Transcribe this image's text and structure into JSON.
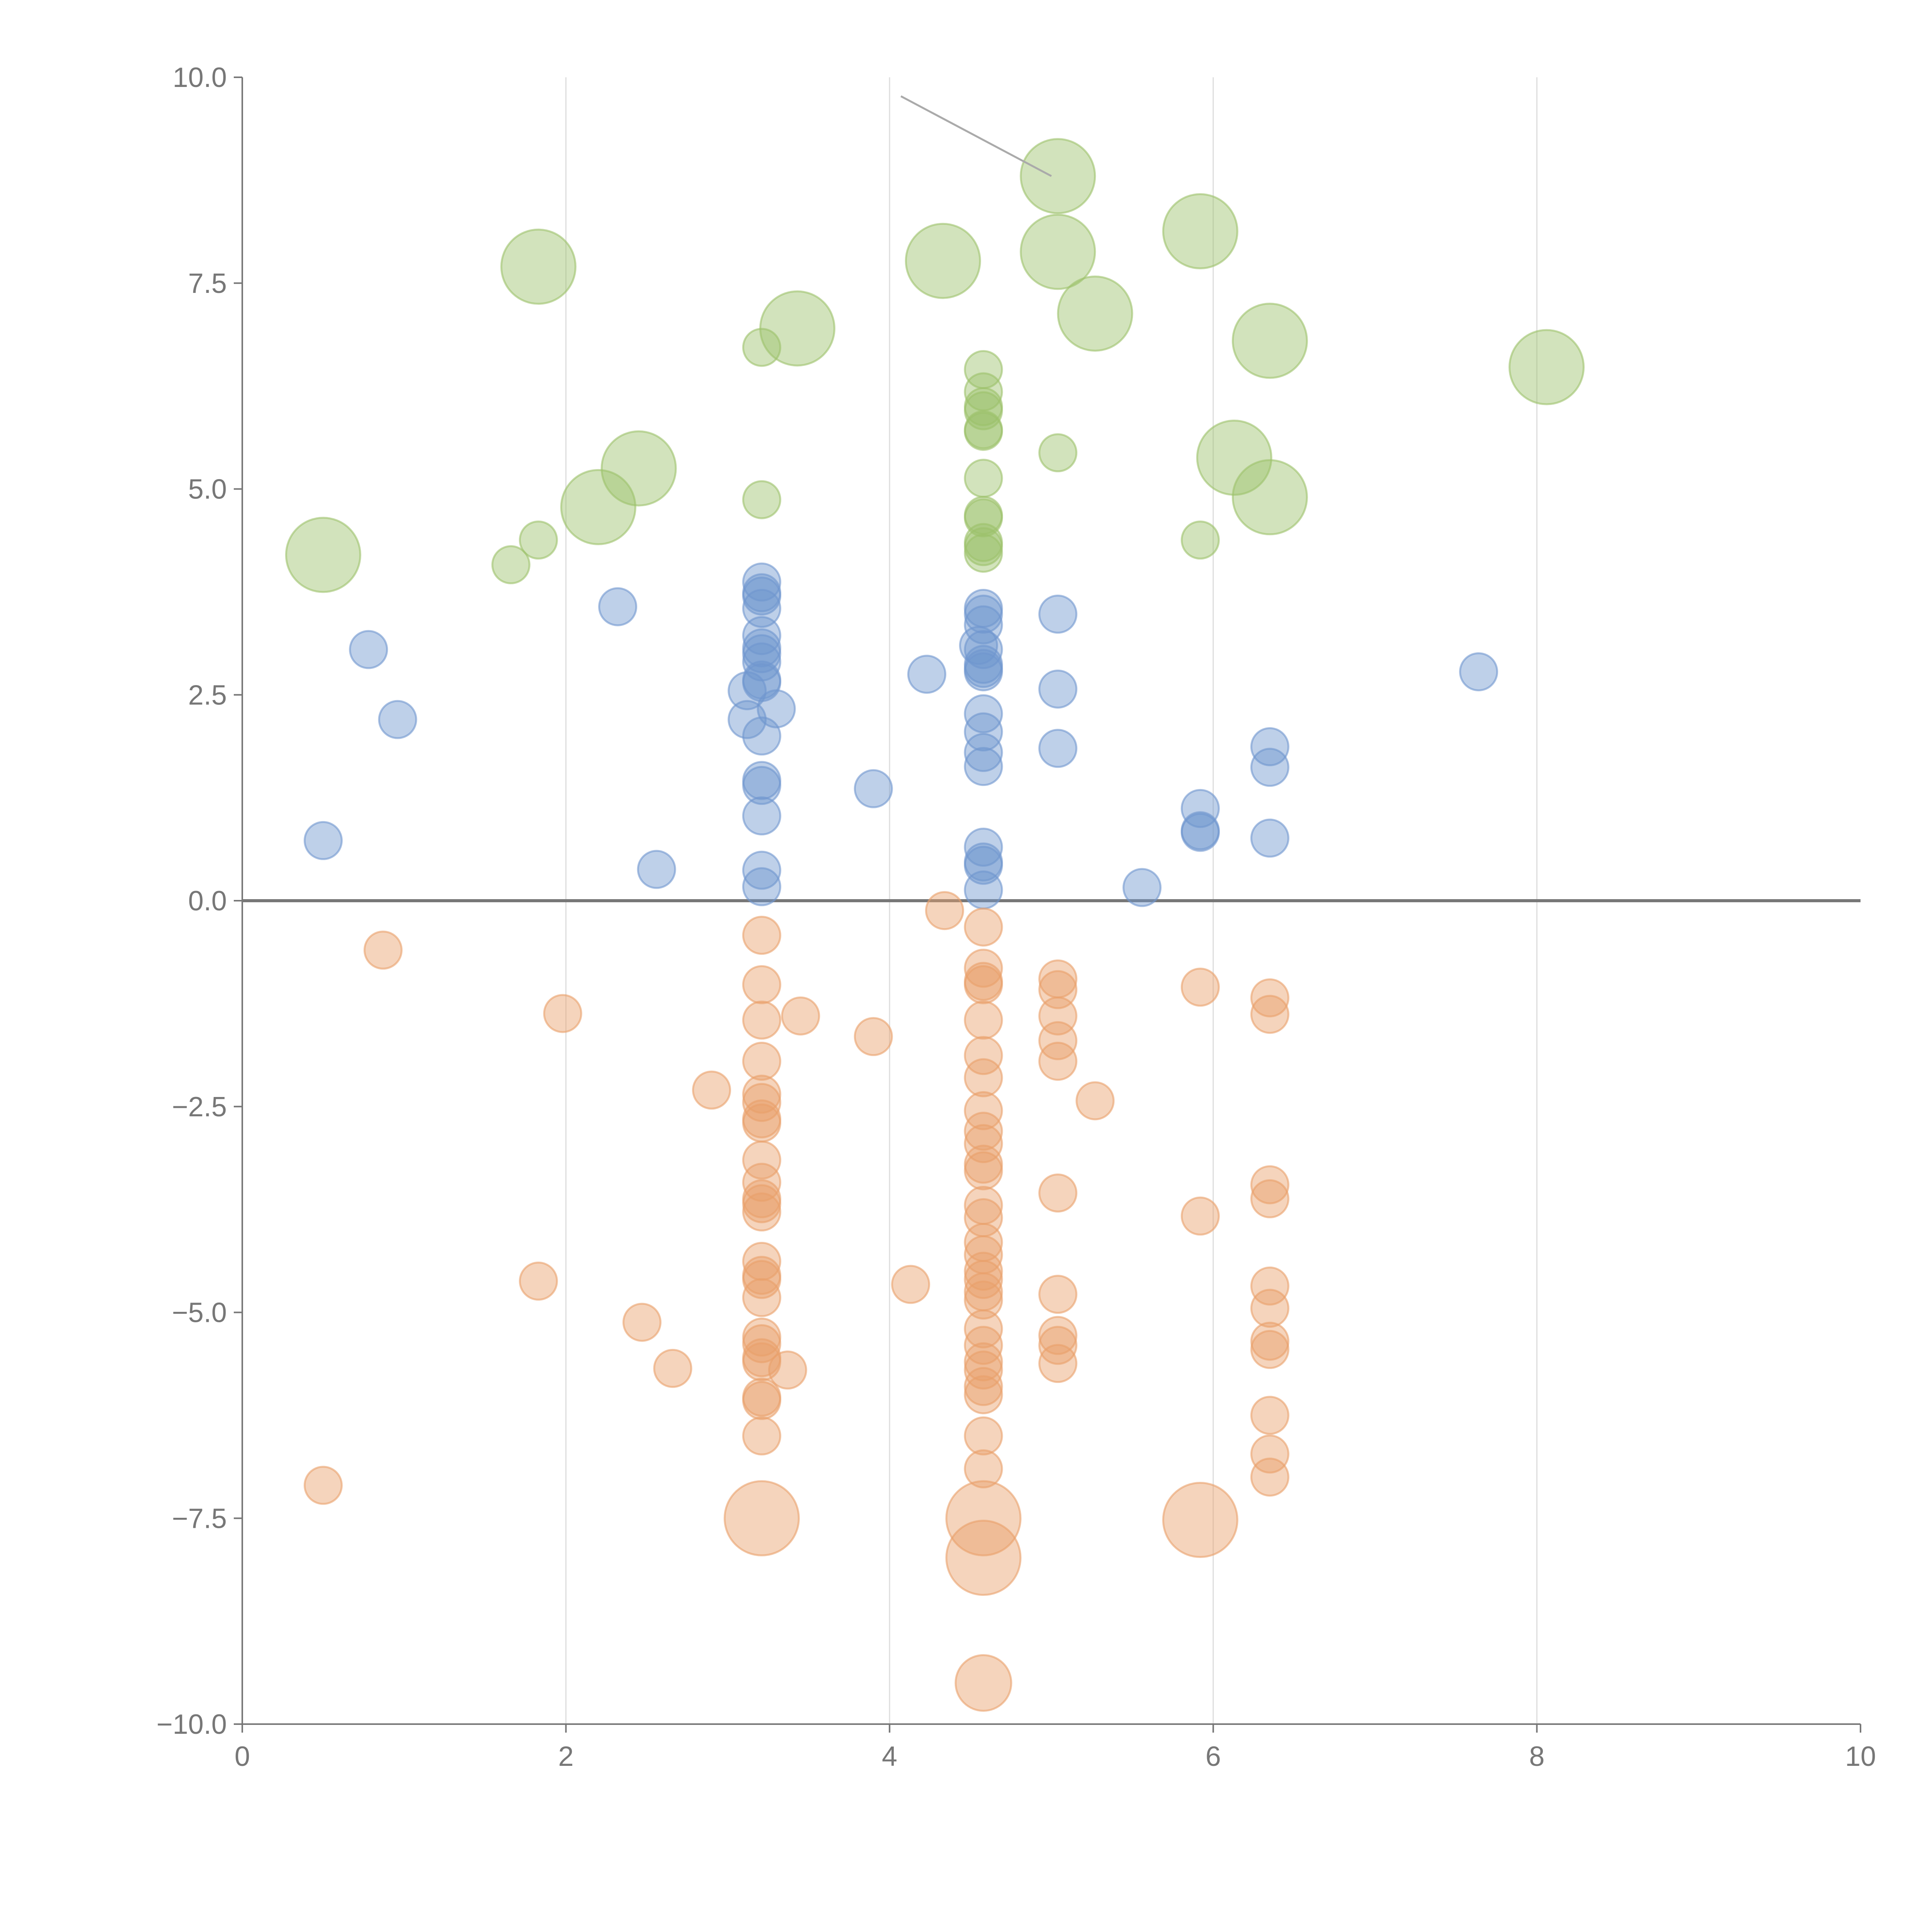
{
  "chart_data": {
    "type": "scatter",
    "title": "",
    "xlabel": "",
    "ylabel": "",
    "xlim": [
      0,
      10
    ],
    "ylim": [
      -10,
      10
    ],
    "x_ticks": [
      "0",
      "2",
      "4",
      "6",
      "8",
      "10"
    ],
    "y_ticks": [
      "10.0",
      "7.5",
      "5.0",
      "2.5",
      "0.0",
      "−2.5",
      "−5.0",
      "−7.5",
      "−10.0"
    ],
    "x_tick_values": [
      0,
      2,
      4,
      6,
      8,
      10
    ],
    "y_tick_values": [
      10,
      7.5,
      5,
      2.5,
      0,
      -2.5,
      -5,
      -7.5,
      -10
    ],
    "vertical_gridlines_at": [
      2,
      4,
      6,
      8
    ],
    "reference_line_y": 0,
    "annotation_segment": {
      "from": [
        4.07,
        9.77
      ],
      "to": [
        5.0,
        8.8
      ]
    },
    "series": [
      {
        "name": "green",
        "color": "#9cc26b",
        "points": [
          {
            "x": 0.5,
            "y": 4.2,
            "size": 2
          },
          {
            "x": 1.66,
            "y": 4.08,
            "size": 1
          },
          {
            "x": 1.83,
            "y": 4.38,
            "size": 1
          },
          {
            "x": 2.2,
            "y": 4.78,
            "size": 2
          },
          {
            "x": 2.45,
            "y": 5.25,
            "size": 2
          },
          {
            "x": 1.83,
            "y": 7.7,
            "size": 2
          },
          {
            "x": 3.21,
            "y": 4.87,
            "size": 1
          },
          {
            "x": 3.21,
            "y": 6.72,
            "size": 1
          },
          {
            "x": 3.43,
            "y": 6.95,
            "size": 2
          },
          {
            "x": 4.33,
            "y": 7.77,
            "size": 2
          },
          {
            "x": 4.58,
            "y": 6.45,
            "size": 1
          },
          {
            "x": 4.58,
            "y": 6.18,
            "size": 1
          },
          {
            "x": 4.58,
            "y": 6.0,
            "size": 1
          },
          {
            "x": 4.58,
            "y": 5.95,
            "size": 1
          },
          {
            "x": 4.58,
            "y": 5.72,
            "size": 1
          },
          {
            "x": 4.58,
            "y": 5.7,
            "size": 1
          },
          {
            "x": 4.58,
            "y": 5.13,
            "size": 1
          },
          {
            "x": 4.58,
            "y": 4.68,
            "size": 1
          },
          {
            "x": 4.58,
            "y": 4.65,
            "size": 1
          },
          {
            "x": 4.58,
            "y": 4.35,
            "size": 1
          },
          {
            "x": 4.58,
            "y": 4.3,
            "size": 1
          },
          {
            "x": 4.58,
            "y": 4.22,
            "size": 1
          },
          {
            "x": 5.04,
            "y": 8.8,
            "size": 2
          },
          {
            "x": 5.04,
            "y": 7.88,
            "size": 2
          },
          {
            "x": 5.27,
            "y": 7.13,
            "size": 2
          },
          {
            "x": 5.04,
            "y": 5.44,
            "size": 1
          },
          {
            "x": 5.92,
            "y": 8.13,
            "size": 2
          },
          {
            "x": 5.92,
            "y": 4.38,
            "size": 1
          },
          {
            "x": 6.13,
            "y": 5.38,
            "size": 2
          },
          {
            "x": 6.35,
            "y": 6.8,
            "size": 2
          },
          {
            "x": 6.35,
            "y": 4.9,
            "size": 2
          },
          {
            "x": 8.06,
            "y": 6.48,
            "size": 2
          }
        ]
      },
      {
        "name": "blue",
        "color": "#6f96cf",
        "points": [
          {
            "x": 0.5,
            "y": 0.73,
            "size": 1
          },
          {
            "x": 0.78,
            "y": 3.05,
            "size": 1
          },
          {
            "x": 0.96,
            "y": 2.2,
            "size": 1
          },
          {
            "x": 2.32,
            "y": 3.57,
            "size": 1
          },
          {
            "x": 2.56,
            "y": 0.38,
            "size": 1
          },
          {
            "x": 3.21,
            "y": 3.87,
            "size": 1
          },
          {
            "x": 3.21,
            "y": 3.74,
            "size": 1
          },
          {
            "x": 3.21,
            "y": 3.7,
            "size": 1
          },
          {
            "x": 3.21,
            "y": 3.55,
            "size": 1
          },
          {
            "x": 3.21,
            "y": 3.22,
            "size": 1
          },
          {
            "x": 3.21,
            "y": 3.07,
            "size": 1
          },
          {
            "x": 3.21,
            "y": 3.0,
            "size": 1
          },
          {
            "x": 3.21,
            "y": 2.9,
            "size": 1
          },
          {
            "x": 3.21,
            "y": 2.68,
            "size": 1
          },
          {
            "x": 3.21,
            "y": 2.65,
            "size": 1
          },
          {
            "x": 3.12,
            "y": 2.55,
            "size": 1
          },
          {
            "x": 3.12,
            "y": 2.2,
            "size": 1
          },
          {
            "x": 3.3,
            "y": 2.33,
            "size": 1
          },
          {
            "x": 3.21,
            "y": 2.0,
            "size": 1
          },
          {
            "x": 3.21,
            "y": 1.46,
            "size": 1
          },
          {
            "x": 3.21,
            "y": 1.4,
            "size": 1
          },
          {
            "x": 3.21,
            "y": 1.03,
            "size": 1
          },
          {
            "x": 3.21,
            "y": 0.37,
            "size": 1
          },
          {
            "x": 3.21,
            "y": 0.17,
            "size": 1
          },
          {
            "x": 3.9,
            "y": 1.36,
            "size": 1
          },
          {
            "x": 4.23,
            "y": 2.75,
            "size": 1
          },
          {
            "x": 4.58,
            "y": 3.55,
            "size": 1
          },
          {
            "x": 4.58,
            "y": 3.48,
            "size": 1
          },
          {
            "x": 4.58,
            "y": 3.35,
            "size": 1
          },
          {
            "x": 4.55,
            "y": 3.1,
            "size": 1
          },
          {
            "x": 4.58,
            "y": 3.05,
            "size": 1
          },
          {
            "x": 4.58,
            "y": 2.87,
            "size": 1
          },
          {
            "x": 4.58,
            "y": 2.82,
            "size": 1
          },
          {
            "x": 4.58,
            "y": 2.78,
            "size": 1
          },
          {
            "x": 4.58,
            "y": 2.27,
            "size": 1
          },
          {
            "x": 4.58,
            "y": 2.05,
            "size": 1
          },
          {
            "x": 4.58,
            "y": 1.8,
            "size": 1
          },
          {
            "x": 4.58,
            "y": 1.63,
            "size": 1
          },
          {
            "x": 4.58,
            "y": 0.65,
            "size": 1
          },
          {
            "x": 4.58,
            "y": 0.47,
            "size": 1
          },
          {
            "x": 4.58,
            "y": 0.43,
            "size": 1
          },
          {
            "x": 4.58,
            "y": 0.13,
            "size": 1
          },
          {
            "x": 5.04,
            "y": 3.48,
            "size": 1
          },
          {
            "x": 5.04,
            "y": 2.57,
            "size": 1
          },
          {
            "x": 5.04,
            "y": 1.85,
            "size": 1
          },
          {
            "x": 5.56,
            "y": 0.16,
            "size": 1
          },
          {
            "x": 5.92,
            "y": 1.12,
            "size": 1
          },
          {
            "x": 5.92,
            "y": 0.85,
            "size": 1
          },
          {
            "x": 5.92,
            "y": 0.83,
            "size": 1
          },
          {
            "x": 6.35,
            "y": 1.87,
            "size": 1
          },
          {
            "x": 6.35,
            "y": 1.62,
            "size": 1
          },
          {
            "x": 6.35,
            "y": 0.76,
            "size": 1
          },
          {
            "x": 7.64,
            "y": 2.78,
            "size": 1
          }
        ]
      },
      {
        "name": "orange",
        "color": "#e9a06a",
        "points": [
          {
            "x": 0.5,
            "y": -7.1,
            "size": 1
          },
          {
            "x": 0.87,
            "y": -0.6,
            "size": 1
          },
          {
            "x": 1.83,
            "y": -4.62,
            "size": 1
          },
          {
            "x": 1.98,
            "y": -1.37,
            "size": 1
          },
          {
            "x": 2.47,
            "y": -5.12,
            "size": 1
          },
          {
            "x": 2.66,
            "y": -5.68,
            "size": 1
          },
          {
            "x": 2.9,
            "y": -2.3,
            "size": 1
          },
          {
            "x": 3.21,
            "y": -0.42,
            "size": 1
          },
          {
            "x": 3.21,
            "y": -1.02,
            "size": 1
          },
          {
            "x": 3.21,
            "y": -1.45,
            "size": 1
          },
          {
            "x": 3.21,
            "y": -1.95,
            "size": 1
          },
          {
            "x": 3.21,
            "y": -2.35,
            "size": 1
          },
          {
            "x": 3.21,
            "y": -2.45,
            "size": 1
          },
          {
            "x": 3.21,
            "y": -2.65,
            "size": 1
          },
          {
            "x": 3.21,
            "y": -2.7,
            "size": 1
          },
          {
            "x": 3.21,
            "y": -3.15,
            "size": 1
          },
          {
            "x": 3.21,
            "y": -3.42,
            "size": 1
          },
          {
            "x": 3.21,
            "y": -3.62,
            "size": 1
          },
          {
            "x": 3.21,
            "y": -3.68,
            "size": 1
          },
          {
            "x": 3.21,
            "y": -3.78,
            "size": 1
          },
          {
            "x": 3.21,
            "y": -4.38,
            "size": 1
          },
          {
            "x": 3.21,
            "y": -4.55,
            "size": 1
          },
          {
            "x": 3.21,
            "y": -4.6,
            "size": 1
          },
          {
            "x": 3.21,
            "y": -4.82,
            "size": 1
          },
          {
            "x": 3.21,
            "y": -5.3,
            "size": 1
          },
          {
            "x": 3.21,
            "y": -5.38,
            "size": 1
          },
          {
            "x": 3.21,
            "y": -5.55,
            "size": 1
          },
          {
            "x": 3.21,
            "y": -5.6,
            "size": 1
          },
          {
            "x": 3.21,
            "y": -6.03,
            "size": 1
          },
          {
            "x": 3.21,
            "y": -6.07,
            "size": 1
          },
          {
            "x": 3.21,
            "y": -6.5,
            "size": 1
          },
          {
            "x": 3.37,
            "y": -5.7,
            "size": 1
          },
          {
            "x": 3.45,
            "y": -1.4,
            "size": 1
          },
          {
            "x": 3.9,
            "y": -1.65,
            "size": 1
          },
          {
            "x": 4.13,
            "y": -4.66,
            "size": 1
          },
          {
            "x": 4.34,
            "y": -0.12,
            "size": 1
          },
          {
            "x": 4.58,
            "y": -0.32,
            "size": 1
          },
          {
            "x": 4.58,
            "y": -0.82,
            "size": 1
          },
          {
            "x": 4.58,
            "y": -0.98,
            "size": 1
          },
          {
            "x": 4.58,
            "y": -1.02,
            "size": 1
          },
          {
            "x": 4.58,
            "y": -1.45,
            "size": 1
          },
          {
            "x": 4.58,
            "y": -1.88,
            "size": 1
          },
          {
            "x": 4.58,
            "y": -2.15,
            "size": 1
          },
          {
            "x": 4.58,
            "y": -2.55,
            "size": 1
          },
          {
            "x": 4.58,
            "y": -2.8,
            "size": 1
          },
          {
            "x": 4.58,
            "y": -2.95,
            "size": 1
          },
          {
            "x": 4.58,
            "y": -3.2,
            "size": 1
          },
          {
            "x": 4.58,
            "y": -3.28,
            "size": 1
          },
          {
            "x": 4.58,
            "y": -3.7,
            "size": 1
          },
          {
            "x": 4.58,
            "y": -3.85,
            "size": 1
          },
          {
            "x": 4.58,
            "y": -4.15,
            "size": 1
          },
          {
            "x": 4.58,
            "y": -4.3,
            "size": 1
          },
          {
            "x": 4.58,
            "y": -4.5,
            "size": 1
          },
          {
            "x": 4.58,
            "y": -4.6,
            "size": 1
          },
          {
            "x": 4.58,
            "y": -4.75,
            "size": 1
          },
          {
            "x": 4.58,
            "y": -4.85,
            "size": 1
          },
          {
            "x": 4.58,
            "y": -5.2,
            "size": 1
          },
          {
            "x": 4.58,
            "y": -5.4,
            "size": 1
          },
          {
            "x": 4.58,
            "y": -5.6,
            "size": 1
          },
          {
            "x": 4.58,
            "y": -5.7,
            "size": 1
          },
          {
            "x": 4.58,
            "y": -5.9,
            "size": 1
          },
          {
            "x": 4.58,
            "y": -6.0,
            "size": 1
          },
          {
            "x": 4.58,
            "y": -6.5,
            "size": 1
          },
          {
            "x": 4.58,
            "y": -6.9,
            "size": 1
          },
          {
            "x": 5.04,
            "y": -0.95,
            "size": 1
          },
          {
            "x": 5.04,
            "y": -1.08,
            "size": 1
          },
          {
            "x": 5.04,
            "y": -1.4,
            "size": 1
          },
          {
            "x": 5.04,
            "y": -1.7,
            "size": 1
          },
          {
            "x": 5.04,
            "y": -1.95,
            "size": 1
          },
          {
            "x": 5.04,
            "y": -3.55,
            "size": 1
          },
          {
            "x": 5.04,
            "y": -4.78,
            "size": 1
          },
          {
            "x": 5.04,
            "y": -5.28,
            "size": 1
          },
          {
            "x": 5.04,
            "y": -5.4,
            "size": 1
          },
          {
            "x": 5.04,
            "y": -5.62,
            "size": 1
          },
          {
            "x": 5.27,
            "y": -2.43,
            "size": 1
          },
          {
            "x": 5.92,
            "y": -1.05,
            "size": 1
          },
          {
            "x": 5.92,
            "y": -3.83,
            "size": 1
          },
          {
            "x": 6.35,
            "y": -1.18,
            "size": 1
          },
          {
            "x": 6.35,
            "y": -1.38,
            "size": 1
          },
          {
            "x": 6.35,
            "y": -3.45,
            "size": 1
          },
          {
            "x": 6.35,
            "y": -3.62,
            "size": 1
          },
          {
            "x": 6.35,
            "y": -4.68,
            "size": 1
          },
          {
            "x": 6.35,
            "y": -4.95,
            "size": 1
          },
          {
            "x": 6.35,
            "y": -5.35,
            "size": 1
          },
          {
            "x": 6.35,
            "y": -5.45,
            "size": 1
          },
          {
            "x": 6.35,
            "y": -6.25,
            "size": 1
          },
          {
            "x": 6.35,
            "y": -6.72,
            "size": 1
          },
          {
            "x": 6.35,
            "y": -7.0,
            "size": 1
          },
          {
            "x": 3.21,
            "y": -7.5,
            "size": 2
          },
          {
            "x": 4.58,
            "y": -7.5,
            "size": 2
          },
          {
            "x": 4.58,
            "y": -7.98,
            "size": 2
          },
          {
            "x": 5.92,
            "y": -7.52,
            "size": 2
          },
          {
            "x": 4.58,
            "y": -9.5,
            "size": 1.5
          }
        ]
      }
    ]
  }
}
